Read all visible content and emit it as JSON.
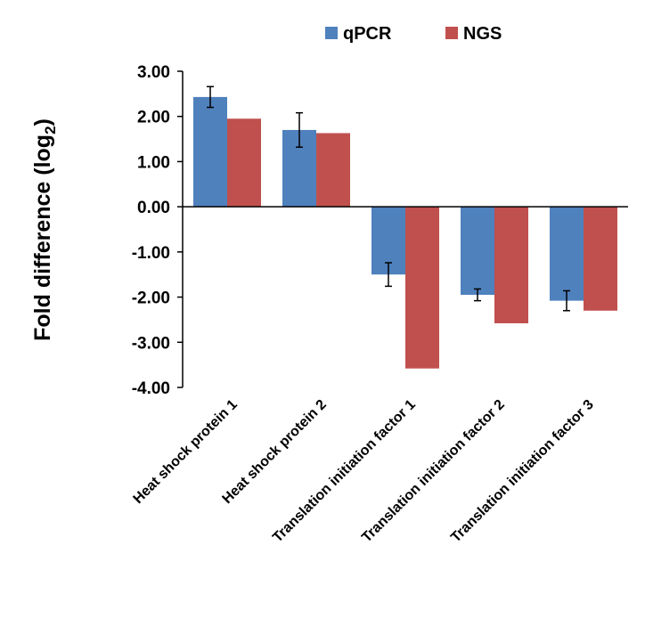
{
  "chart_data": {
    "type": "bar",
    "y_label": {
      "text": "Fold difference (log",
      "subscript": "2",
      "suffix": ")"
    },
    "categories": [
      "Heat shock protein 1",
      "Heat shock protein 2",
      "Translation initiation factor 1",
      "Translation initiation factor 2",
      "Translation initiation factor 3"
    ],
    "series": [
      {
        "name": "qPCR",
        "color": "#4f81bd",
        "values": [
          2.43,
          1.7,
          -1.5,
          -1.95,
          -2.08
        ],
        "errors": [
          0.23,
          0.38,
          0.26,
          0.13,
          0.22
        ]
      },
      {
        "name": "NGS",
        "color": "#c0504d",
        "values": [
          1.95,
          1.63,
          -3.58,
          -2.58,
          -2.3
        ]
      }
    ],
    "ylim": [
      -4,
      3
    ],
    "yticks": [
      {
        "value": -4,
        "label": "-4.00"
      },
      {
        "value": -3,
        "label": "-3.00"
      },
      {
        "value": -2,
        "label": "-2.00"
      },
      {
        "value": -1,
        "label": "-1.00"
      },
      {
        "value": 0,
        "label": "0.00"
      },
      {
        "value": 1,
        "label": "1.00"
      },
      {
        "value": 2,
        "label": "2.00"
      },
      {
        "value": 3,
        "label": "3.00"
      }
    ],
    "grid": false,
    "legend": "top"
  }
}
